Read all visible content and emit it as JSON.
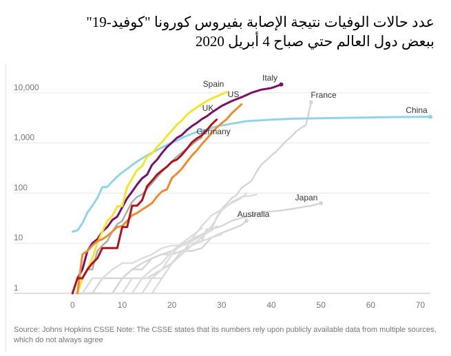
{
  "title": {
    "line1": "عدد حالات الوفيات نتيجة الإصابة بفيروس كورونا \"كوفيد-19\"",
    "line2": "ببعض دول العالم حتي صباح 4 أبريل 2020"
  },
  "footnote": "Source: Johns Hopkins CSSE Note: The CSSE states that its numbers rely upon publicly available data from multiple sources, which do not always agree",
  "colors": {
    "spain": "#f5e52a",
    "italy": "#7a0f6b",
    "us": "#f08a2c",
    "uk": "#b0111b",
    "germany": "#a8a8a8",
    "china": "#8fd3ec",
    "france": "#d5d5d5",
    "japan": "#d5d5d5",
    "australia": "#d5d5d5",
    "other": "#dcdcdc",
    "grid": "#e6e6e6",
    "axis_text": "#777777",
    "label_text": "#333333"
  },
  "chart_data": {
    "type": "line",
    "title": "عدد حالات الوفيات نتيجة الإصابة بفيروس كورونا \"كوفيد-19\" ببعض دول العالم حتي صباح 4 أبريل 2020",
    "xlabel": "",
    "ylabel": "",
    "y_scale": "log",
    "xlim": [
      -6,
      72
    ],
    "ylim": [
      1,
      15000
    ],
    "x_ticks": [
      0,
      10,
      20,
      30,
      40,
      50,
      60,
      70
    ],
    "x_tick_labels": [
      "0",
      "10",
      "20",
      "30",
      "40",
      "50",
      "60",
      "70"
    ],
    "y_ticks": [
      1,
      10,
      100,
      1000,
      10000
    ],
    "y_tick_labels": [
      "1",
      "10",
      "100",
      "1,000",
      "10,000"
    ],
    "grid": true,
    "series": [
      {
        "name": "China",
        "label": "China",
        "color_key": "china",
        "highlight": true,
        "end_marker": true,
        "x": [
          0,
          1,
          2,
          3,
          4,
          5,
          6,
          7,
          8,
          9,
          10,
          11,
          12,
          13,
          14,
          15,
          16,
          17,
          18,
          19,
          20,
          21,
          22,
          23,
          24,
          25,
          26,
          27,
          28,
          30,
          35,
          40,
          45,
          50,
          55,
          60,
          65,
          72
        ],
        "y": [
          17,
          18,
          25,
          41,
          56,
          80,
          131,
          133,
          170,
          213,
          259,
          304,
          362,
          426,
          492,
          565,
          638,
          724,
          813,
          910,
          1016,
          1113,
          1259,
          1380,
          1523,
          1665,
          1770,
          1868,
          2004,
          2236,
          2715,
          2915,
          3070,
          3119,
          3176,
          3227,
          3283,
          3326
        ]
      },
      {
        "name": "Italy",
        "label": "Italy",
        "color_key": "italy",
        "highlight": true,
        "end_marker": true,
        "x": [
          1,
          2,
          3,
          4,
          5,
          6,
          7,
          8,
          9,
          10,
          11,
          12,
          13,
          14,
          15,
          16,
          17,
          18,
          19,
          20,
          21,
          22,
          23,
          24,
          25,
          26,
          27,
          28,
          30,
          32,
          34,
          36,
          38,
          40,
          42
        ],
        "y": [
          2,
          3,
          7,
          10,
          12,
          17,
          21,
          29,
          34,
          52,
          79,
          107,
          148,
          197,
          233,
          366,
          463,
          631,
          827,
          1016,
          1266,
          1441,
          1809,
          2158,
          2503,
          2978,
          3405,
          4032,
          5476,
          6820,
          8165,
          10023,
          11591,
          12428,
          14681
        ]
      },
      {
        "name": "Spain",
        "label": "Spain",
        "color_key": "spain",
        "highlight": true,
        "end_marker": false,
        "x": [
          1,
          2,
          3,
          4,
          5,
          6,
          7,
          8,
          9,
          10,
          11,
          12,
          13,
          14,
          15,
          16,
          17,
          18,
          19,
          20,
          21,
          22,
          23,
          24,
          25,
          26,
          27,
          28,
          29,
          30,
          31
        ],
        "y": [
          1,
          2,
          3,
          5,
          10,
          17,
          28,
          35,
          54,
          55,
          133,
          195,
          289,
          342,
          533,
          623,
          830,
          1043,
          1375,
          1772,
          2311,
          2808,
          3647,
          4365,
          5138,
          5982,
          6803,
          7716,
          8464,
          9387,
          10348
        ]
      },
      {
        "name": "US",
        "label": "US",
        "color_key": "us",
        "highlight": true,
        "end_marker": false,
        "x": [
          1,
          2,
          3,
          4,
          5,
          6,
          7,
          8,
          9,
          10,
          11,
          12,
          13,
          14,
          15,
          16,
          17,
          18,
          19,
          20,
          21,
          22,
          23,
          24,
          25,
          26,
          27,
          28,
          29,
          30,
          31,
          32,
          33,
          34
        ],
        "y": [
          1,
          6,
          7,
          9,
          11,
          12,
          14,
          17,
          21,
          22,
          28,
          36,
          40,
          47,
          54,
          63,
          85,
          108,
          118,
          200,
          244,
          307,
          417,
          557,
          706,
          942,
          1209,
          1581,
          2026,
          2467,
          2978,
          3873,
          4757,
          5926
        ]
      },
      {
        "name": "UK",
        "label": "UK",
        "color_key": "uk",
        "highlight": true,
        "end_marker": false,
        "x": [
          0,
          1,
          2,
          3,
          4,
          5,
          6,
          7,
          8,
          9,
          10,
          11,
          12,
          13,
          14,
          15,
          16,
          17,
          18,
          19,
          20,
          21,
          22,
          23,
          24,
          25,
          26,
          27,
          28,
          29
        ],
        "y": [
          1,
          2,
          2,
          3,
          4,
          5,
          8,
          8,
          8,
          8,
          21,
          21,
          56,
          56,
          72,
          137,
          177,
          233,
          281,
          335,
          422,
          465,
          578,
          759,
          1019,
          1228,
          1408,
          1789,
          2352,
          2921
        ]
      },
      {
        "name": "Germany",
        "label": "Germany",
        "color_key": "germany",
        "highlight": false,
        "end_marker": false,
        "x": [
          1,
          2,
          3,
          4,
          5,
          6,
          7,
          8,
          9,
          10,
          11,
          12,
          13,
          14,
          15,
          16,
          17,
          18,
          19,
          20,
          21,
          22,
          23,
          24,
          25,
          26
        ],
        "y": [
          2,
          2,
          3,
          3,
          7,
          9,
          11,
          17,
          24,
          28,
          44,
          67,
          84,
          94,
          123,
          157,
          206,
          267,
          342,
          433,
          533,
          645,
          775,
          920,
          1107,
          1275
        ]
      },
      {
        "name": "France",
        "label": "France",
        "color_key": "france",
        "highlight": false,
        "end_marker": true,
        "x": [
          0,
          2,
          5,
          8,
          10,
          12,
          15,
          18,
          20,
          22,
          24,
          26,
          27,
          28,
          29,
          30,
          31,
          32,
          33,
          34,
          35,
          36,
          37,
          38,
          39,
          40,
          41,
          42,
          43,
          44,
          45,
          46,
          47,
          48
        ],
        "y": [
          1,
          1,
          1,
          1,
          2,
          2,
          2,
          3,
          4,
          7,
          9,
          11,
          19,
          19,
          33,
          48,
          61,
          79,
          91,
          127,
          148,
          175,
          264,
          372,
          450,
          562,
          674,
          860,
          1100,
          1331,
          1696,
          1995,
          2314,
          6500
        ]
      },
      {
        "name": "Japan",
        "label": "Japan",
        "color_key": "japan",
        "highlight": false,
        "end_marker": true,
        "x": [
          0,
          2,
          4,
          6,
          8,
          10,
          12,
          14,
          16,
          18,
          20,
          22,
          24,
          26,
          28,
          30,
          32,
          34,
          36,
          38,
          40,
          42,
          44,
          46,
          48,
          50
        ],
        "y": [
          1,
          1,
          1,
          1,
          1,
          2,
          3,
          4,
          5,
          6,
          7,
          9,
          12,
          15,
          19,
          22,
          28,
          32,
          35,
          41,
          43,
          45,
          48,
          52,
          56,
          63
        ]
      },
      {
        "name": "Australia",
        "label": "Australia",
        "color_key": "australia",
        "highlight": false,
        "end_marker": true,
        "x": [
          0,
          2,
          4,
          6,
          8,
          10,
          12,
          14,
          16,
          18,
          20,
          22,
          24,
          26,
          28,
          30,
          32,
          34,
          35
        ],
        "y": [
          1,
          1,
          1,
          2,
          2,
          2,
          3,
          3,
          5,
          6,
          6,
          7,
          7,
          8,
          13,
          16,
          19,
          23,
          28
        ]
      },
      {
        "name": "other-1",
        "label": "",
        "color_key": "other",
        "highlight": false,
        "end_marker": false,
        "x": [
          2,
          4,
          6,
          8,
          10,
          12,
          14,
          16,
          18,
          20,
          22,
          24,
          26,
          28,
          30
        ],
        "y": [
          1,
          2,
          2,
          3,
          4,
          4,
          5,
          6,
          8,
          9,
          9,
          10,
          11,
          13,
          15
        ]
      },
      {
        "name": "other-2",
        "label": "",
        "color_key": "other",
        "highlight": false,
        "end_marker": false,
        "x": [
          6,
          8,
          10,
          12,
          14,
          16,
          18,
          20,
          22,
          24,
          26,
          28,
          29
        ],
        "y": [
          1,
          1,
          1,
          2,
          2,
          3,
          4,
          7,
          10,
          11,
          14,
          18,
          22
        ]
      },
      {
        "name": "other-3",
        "label": "",
        "color_key": "other",
        "highlight": false,
        "end_marker": false,
        "x": [
          12,
          14,
          16,
          18,
          20,
          22,
          24,
          26,
          28,
          30,
          32,
          34,
          36,
          37
        ],
        "y": [
          1,
          1,
          2,
          2,
          4,
          6,
          9,
          13,
          22,
          45,
          66,
          84,
          89,
          94
        ]
      },
      {
        "name": "other-4",
        "label": "",
        "color_key": "other",
        "highlight": false,
        "end_marker": false,
        "x": [
          16,
          18,
          20,
          22,
          24,
          26,
          28,
          30,
          32,
          34,
          35
        ],
        "y": [
          1,
          2,
          4,
          6,
          12,
          22,
          36,
          47,
          63,
          80,
          99
        ]
      },
      {
        "name": "other-5",
        "label": "",
        "color_key": "other",
        "highlight": false,
        "end_marker": false,
        "x": [
          10,
          12,
          14,
          16,
          18,
          20,
          22,
          24,
          26
        ],
        "y": [
          1,
          1,
          2,
          2,
          3,
          6,
          10,
          14,
          20
        ]
      }
    ]
  }
}
